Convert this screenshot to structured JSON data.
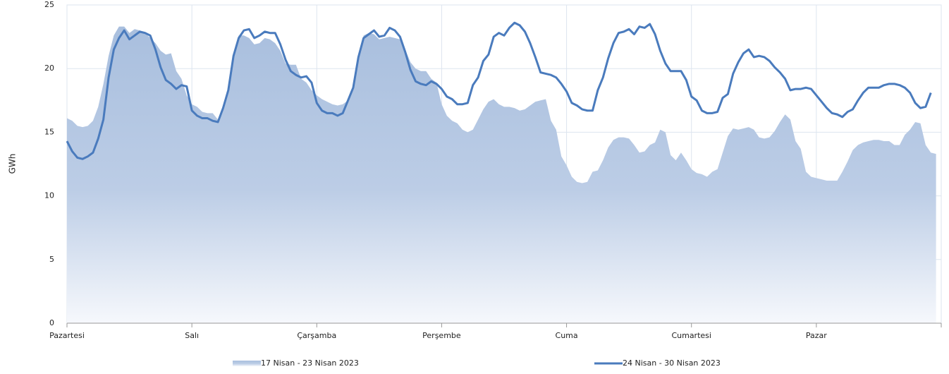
{
  "chart_data": {
    "type": "area-line",
    "y_label": "GWh",
    "categories": [
      "Pazartesi",
      null,
      null,
      null,
      null,
      null,
      null,
      null,
      null,
      null,
      null,
      null,
      null,
      null,
      null,
      null,
      null,
      null,
      null,
      null,
      null,
      null,
      null,
      null,
      "Salı",
      null,
      null,
      null,
      null,
      null,
      null,
      null,
      null,
      null,
      null,
      null,
      null,
      null,
      null,
      null,
      null,
      null,
      null,
      null,
      null,
      null,
      null,
      null,
      "Çarşamba",
      null,
      null,
      null,
      null,
      null,
      null,
      null,
      null,
      null,
      null,
      null,
      null,
      null,
      null,
      null,
      null,
      null,
      null,
      null,
      null,
      null,
      null,
      null,
      "Perşembe",
      null,
      null,
      null,
      null,
      null,
      null,
      null,
      null,
      null,
      null,
      null,
      null,
      null,
      null,
      null,
      null,
      null,
      null,
      null,
      null,
      null,
      null,
      null,
      "Cuma",
      null,
      null,
      null,
      null,
      null,
      null,
      null,
      null,
      null,
      null,
      null,
      null,
      null,
      null,
      null,
      null,
      null,
      null,
      null,
      null,
      null,
      null,
      null,
      "Cumartesi",
      null,
      null,
      null,
      null,
      null,
      null,
      null,
      null,
      null,
      null,
      null,
      null,
      null,
      null,
      null,
      null,
      null,
      null,
      null,
      null,
      null,
      null,
      null,
      "Pazar",
      null,
      null,
      null,
      null,
      null,
      null,
      null,
      null,
      null,
      null,
      null,
      null,
      null,
      null,
      null,
      null,
      null,
      null,
      null,
      null,
      null,
      null,
      null
    ],
    "series": [
      {
        "name": "17 Nisan - 23 Nisan 2023",
        "kind": "area",
        "color": "#a9bfde",
        "values": [
          16.1,
          15.9,
          15.5,
          15.4,
          15.5,
          15.9,
          17,
          18.8,
          21,
          22.6,
          23.3,
          23.3,
          22.8,
          23.1,
          23.0,
          22.8,
          22.4,
          22.0,
          21.4,
          21.1,
          21.2,
          19.8,
          19.2,
          17.9,
          17.2,
          17.0,
          16.6,
          16.5,
          16.5,
          16.0,
          17.1,
          18.6,
          21.2,
          22.6,
          22.6,
          22.4,
          21.9,
          22.0,
          22.4,
          22.3,
          22.0,
          21.4,
          20.4,
          20.3,
          20.3,
          19.2,
          18.9,
          18.3,
          17.9,
          17.6,
          17.4,
          17.2,
          17.1,
          17.2,
          17.5,
          18.5,
          20.9,
          22.6,
          22.8,
          22.7,
          22.3,
          22.4,
          22.5,
          22.4,
          22.3,
          21.5,
          20.5,
          20.0,
          19.8,
          19.8,
          19.2,
          18.9,
          17.2,
          16.3,
          15.9,
          15.7,
          15.2,
          15.0,
          15.2,
          16.0,
          16.8,
          17.4,
          17.6,
          17.2,
          17.0,
          17.0,
          16.9,
          16.7,
          16.8,
          17.1,
          17.4,
          17.5,
          17.6,
          15.9,
          15.2,
          13.1,
          12.4,
          11.5,
          11.1,
          11.0,
          11.1,
          11.9,
          12.0,
          12.8,
          13.8,
          14.4,
          14.6,
          14.6,
          14.5,
          14.0,
          13.4,
          13.5,
          14.0,
          14.2,
          15.2,
          15.0,
          13.2,
          12.8,
          13.4,
          12.8,
          12.1,
          11.8,
          11.7,
          11.5,
          11.9,
          12.1,
          13.4,
          14.7,
          15.3,
          15.2,
          15.3,
          15.4,
          15.2,
          14.6,
          14.5,
          14.6,
          15.1,
          15.8,
          16.4,
          16.0,
          14.3,
          13.7,
          11.9,
          11.5,
          11.4,
          11.3,
          11.2,
          11.2,
          11.2,
          11.9,
          12.7,
          13.6,
          14.0,
          14.2,
          14.3,
          14.4,
          14.4,
          14.3,
          14.3,
          14.0,
          14.0,
          14.8,
          15.2,
          15.8,
          15.7,
          14.0,
          13.4,
          13.3
        ]
      },
      {
        "name": "24 Nisan - 30 Nisan 2023",
        "kind": "line",
        "color": "#4a7bbd",
        "values": [
          14.3,
          13.5,
          13.0,
          12.9,
          13.1,
          13.4,
          14.5,
          16,
          19.3,
          21.5,
          22.4,
          23.0,
          22.3,
          22.6,
          22.9,
          22.8,
          22.6,
          21.5,
          20.1,
          19.1,
          18.8,
          18.4,
          18.7,
          18.6,
          16.7,
          16.3,
          16.1,
          16.1,
          15.9,
          15.8,
          16.9,
          18.3,
          21.0,
          22.4,
          23.0,
          23.1,
          22.4,
          22.6,
          22.9,
          22.8,
          22.8,
          21.9,
          20.7,
          19.8,
          19.5,
          19.3,
          19.4,
          18.9,
          17.3,
          16.7,
          16.5,
          16.5,
          16.3,
          16.5,
          17.5,
          18.5,
          20.9,
          22.4,
          22.7,
          23.0,
          22.5,
          22.6,
          23.2,
          23.0,
          22.5,
          21.3,
          19.9,
          19.0,
          18.8,
          18.7,
          19.0,
          18.8,
          18.4,
          17.8,
          17.6,
          17.2,
          17.2,
          17.3,
          18.7,
          19.3,
          20.6,
          21.1,
          22.5,
          22.8,
          22.6,
          23.2,
          23.6,
          23.4,
          22.9,
          22.0,
          20.9,
          19.7,
          19.6,
          19.5,
          19.3,
          18.8,
          18.2,
          17.3,
          17.1,
          16.8,
          16.7,
          16.7,
          18.3,
          19.3,
          20.8,
          22.0,
          22.8,
          22.9,
          23.1,
          22.7,
          23.3,
          23.2,
          23.5,
          22.7,
          21.4,
          20.4,
          19.8,
          19.8,
          19.8,
          19.1,
          17.8,
          17.5,
          16.7,
          16.5,
          16.5,
          16.6,
          17.7,
          18.0,
          19.6,
          20.5,
          21.2,
          21.5,
          20.9,
          21.0,
          20.9,
          20.6,
          20.1,
          19.7,
          19.2,
          18.3,
          18.4,
          18.4,
          18.5,
          18.4,
          17.9,
          17.4,
          16.9,
          16.5,
          16.4,
          16.2,
          16.6,
          16.8,
          17.5,
          18.1,
          18.5,
          18.5,
          18.5,
          18.7,
          18.8,
          18.8,
          18.7,
          18.5,
          18.1,
          17.3,
          16.9,
          17.0,
          18.1,
          null
        ]
      }
    ],
    "ylim": [
      0,
      25
    ],
    "yticks": [
      0,
      5,
      10,
      15,
      20,
      25
    ],
    "grid": true,
    "legend": "bottom"
  }
}
